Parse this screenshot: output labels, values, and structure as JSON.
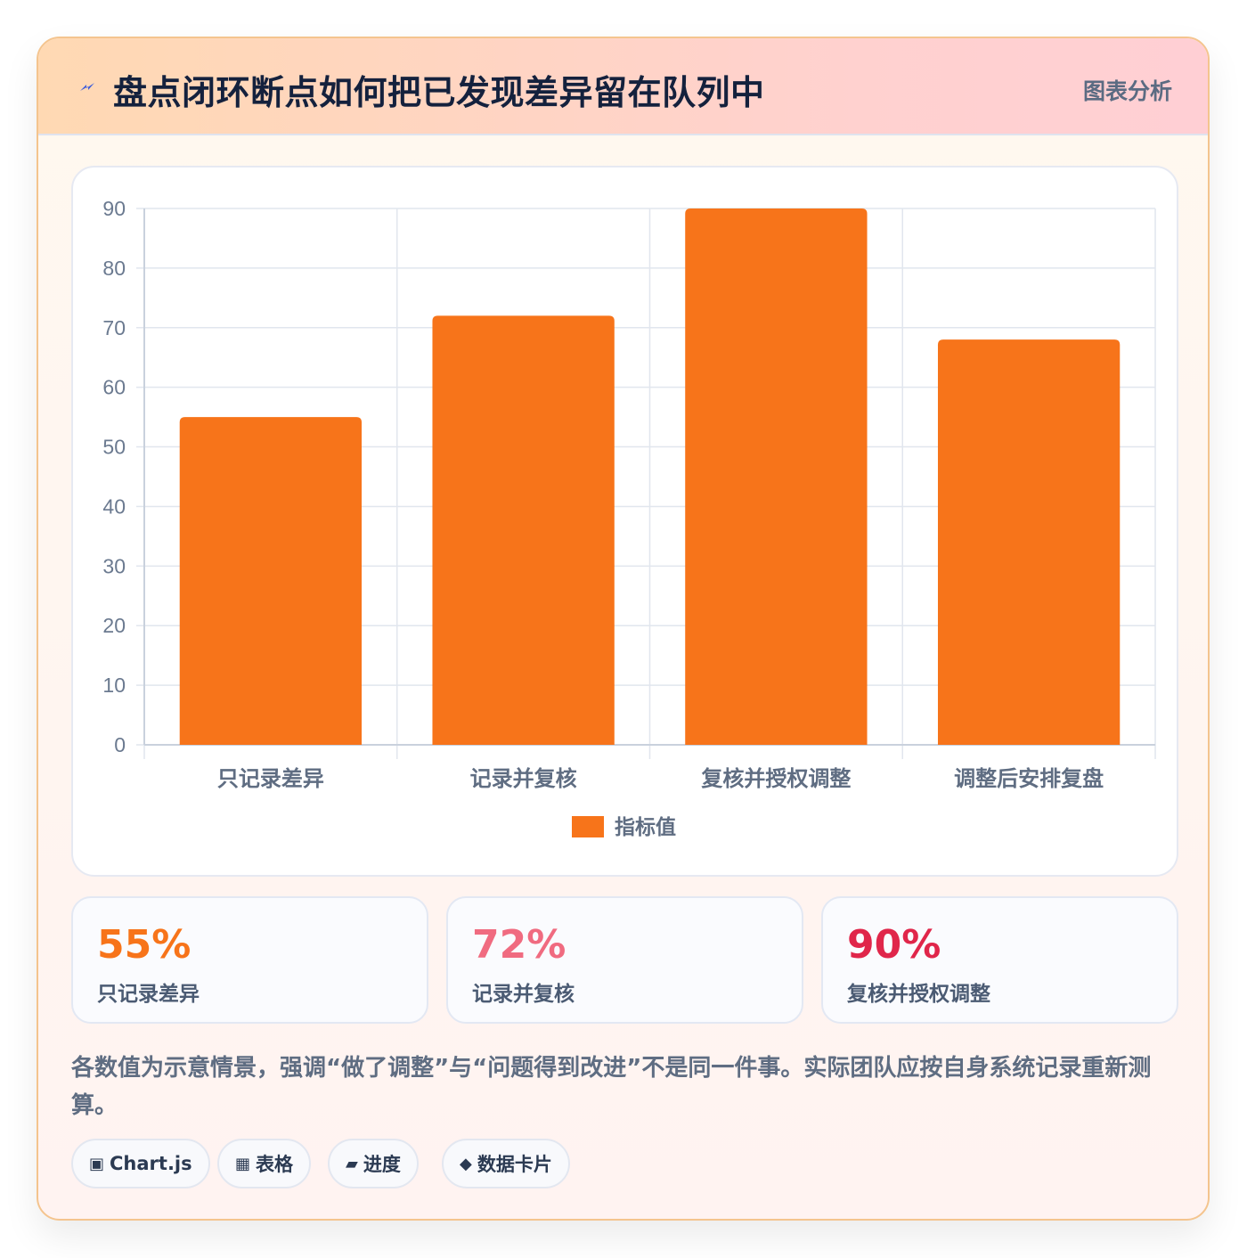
{
  "header": {
    "title": "盘点闭环断点如何把已发现差异留在队列中",
    "badge": "图表分析",
    "icon": "lightning-icon",
    "icon_color": "#3b5bdb"
  },
  "chart_data": {
    "type": "bar",
    "categories": [
      "只记录差异",
      "记录并复核",
      "复核并授权调整",
      "调整后安排复盘"
    ],
    "series": [
      {
        "name": "指标值",
        "values": [
          55,
          72,
          90,
          68
        ],
        "color": "#f7741a"
      }
    ],
    "ylim": [
      0,
      90
    ],
    "yticks": [
      0,
      10,
      20,
      30,
      40,
      50,
      60,
      70,
      80,
      90
    ],
    "grid": true,
    "legend_position": "bottom"
  },
  "stats": [
    {
      "value": "55%",
      "label": "只记录差异",
      "color": "#f7741a"
    },
    {
      "value": "72%",
      "label": "记录并复核",
      "color": "#f06b80"
    },
    {
      "value": "90%",
      "label": "复核并授权调整",
      "color": "#e0264a"
    }
  ],
  "note": "各数值为示意情景，强调“做了调整”与“问题得到改进”不是同一件事。实际团队应按自身系统记录重新测算。",
  "tags": [
    {
      "icon": "▣",
      "icon_name": "chart-icon",
      "label": "Chart.js"
    },
    {
      "icon": "▦",
      "icon_name": "table-icon",
      "label": "表格"
    },
    {
      "icon": "▰",
      "icon_name": "progress-icon",
      "label": "进度"
    },
    {
      "icon": "◆",
      "icon_name": "data-card-icon",
      "label": "数据卡片"
    }
  ]
}
